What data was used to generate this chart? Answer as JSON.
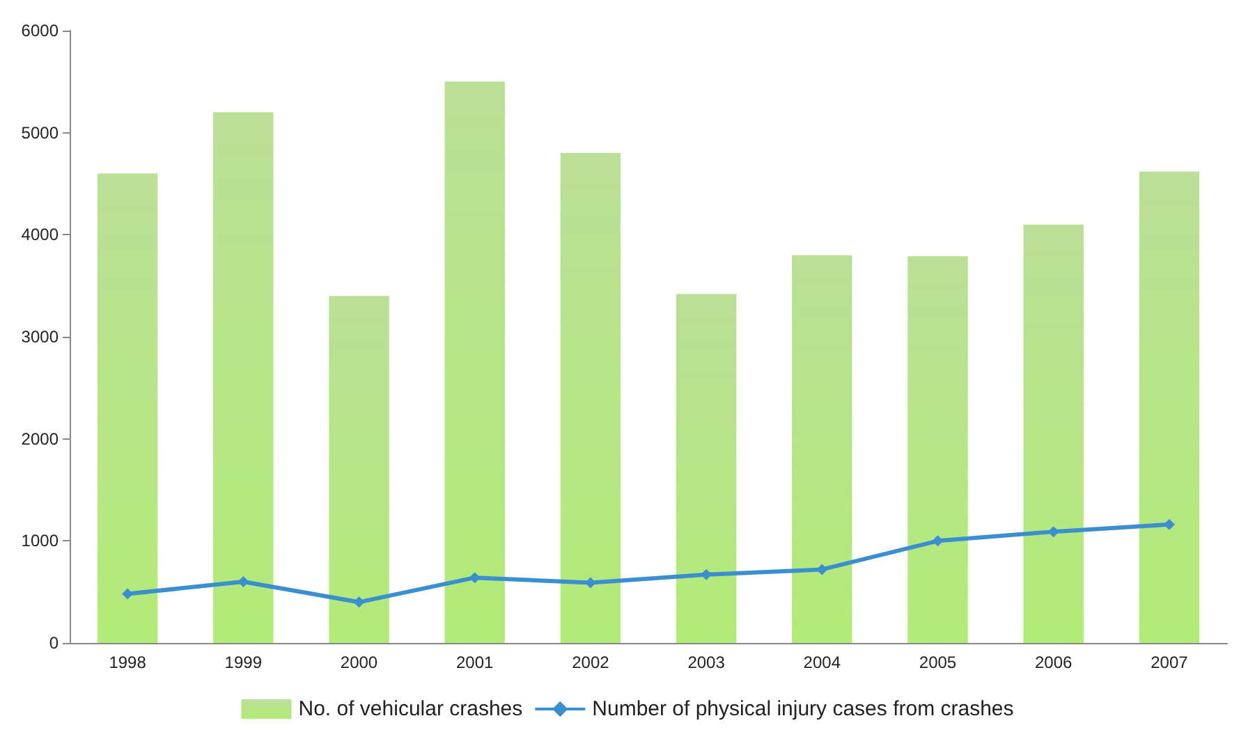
{
  "chart_data": {
    "type": "bar",
    "categories": [
      "1998",
      "1999",
      "2000",
      "2001",
      "2002",
      "2003",
      "2004",
      "2005",
      "2006",
      "2007"
    ],
    "series": [
      {
        "name": "No. of vehicular crashes",
        "color": "#9fd26b",
        "values": [
          4600,
          5200,
          3400,
          5500,
          4800,
          3420,
          3800,
          3790,
          4100,
          4620
        ]
      },
      {
        "name": "Number of physical injury cases from crashes",
        "type": "line",
        "color": "#3a8fd0",
        "marker": "diamond",
        "values": [
          480,
          600,
          400,
          640,
          590,
          670,
          720,
          1000,
          1090,
          1160
        ]
      }
    ],
    "ylim": [
      0,
      6000
    ],
    "yticks": [
      0,
      1000,
      2000,
      3000,
      4000,
      5000,
      6000
    ],
    "grid": false,
    "legend": "bottom"
  }
}
